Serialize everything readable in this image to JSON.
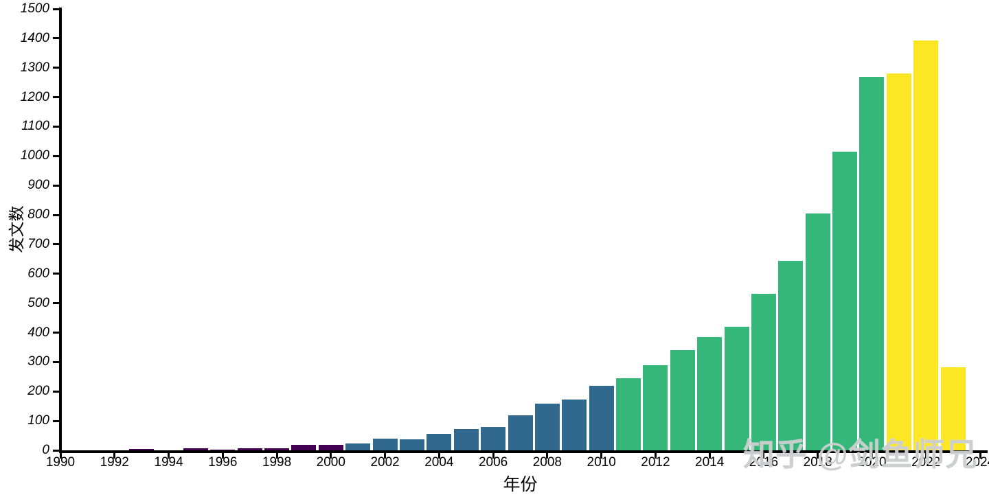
{
  "figure": {
    "background": "#ffffff",
    "axis_color": "#000000"
  },
  "watermark": {
    "text": "知乎 @剑鱼师兄",
    "color": "#cacbcd"
  },
  "chart_data": {
    "type": "bar",
    "title": "",
    "xlabel": "年份",
    "ylabel": "发文数",
    "x": [
      1990,
      1991,
      1992,
      1993,
      1994,
      1995,
      1996,
      1997,
      1998,
      1999,
      2000,
      2001,
      2002,
      2003,
      2004,
      2005,
      2006,
      2007,
      2008,
      2009,
      2010,
      2011,
      2012,
      2013,
      2014,
      2015,
      2016,
      2017,
      2018,
      2019,
      2020,
      2021,
      2022,
      2023
    ],
    "values": [
      0,
      0,
      1,
      4,
      1,
      7,
      3,
      6,
      8,
      18,
      18,
      24,
      40,
      38,
      57,
      73,
      79,
      118,
      158,
      172,
      220,
      245,
      290,
      340,
      386,
      421,
      531,
      643,
      805,
      1015,
      1270,
      1280,
      1392,
      283
    ],
    "color_periods": [
      {
        "from": 1990,
        "to": 2000,
        "color": "#440154"
      },
      {
        "from": 2001,
        "to": 2010,
        "color": "#31688e"
      },
      {
        "from": 2011,
        "to": 2020,
        "color": "#35b779"
      },
      {
        "from": 2021,
        "to": 2023,
        "color": "#fde725"
      }
    ],
    "xlim": [
      1990,
      2024
    ],
    "ylim": [
      0,
      1500
    ],
    "x_ticks": [
      1990,
      1992,
      1994,
      1996,
      1998,
      2000,
      2002,
      2004,
      2006,
      2008,
      2010,
      2012,
      2014,
      2016,
      2018,
      2020,
      2022,
      2024
    ],
    "y_ticks": [
      0,
      100,
      200,
      300,
      400,
      500,
      600,
      700,
      800,
      900,
      1000,
      1100,
      1200,
      1300,
      1400,
      1500
    ],
    "grid": false,
    "legend": null
  }
}
